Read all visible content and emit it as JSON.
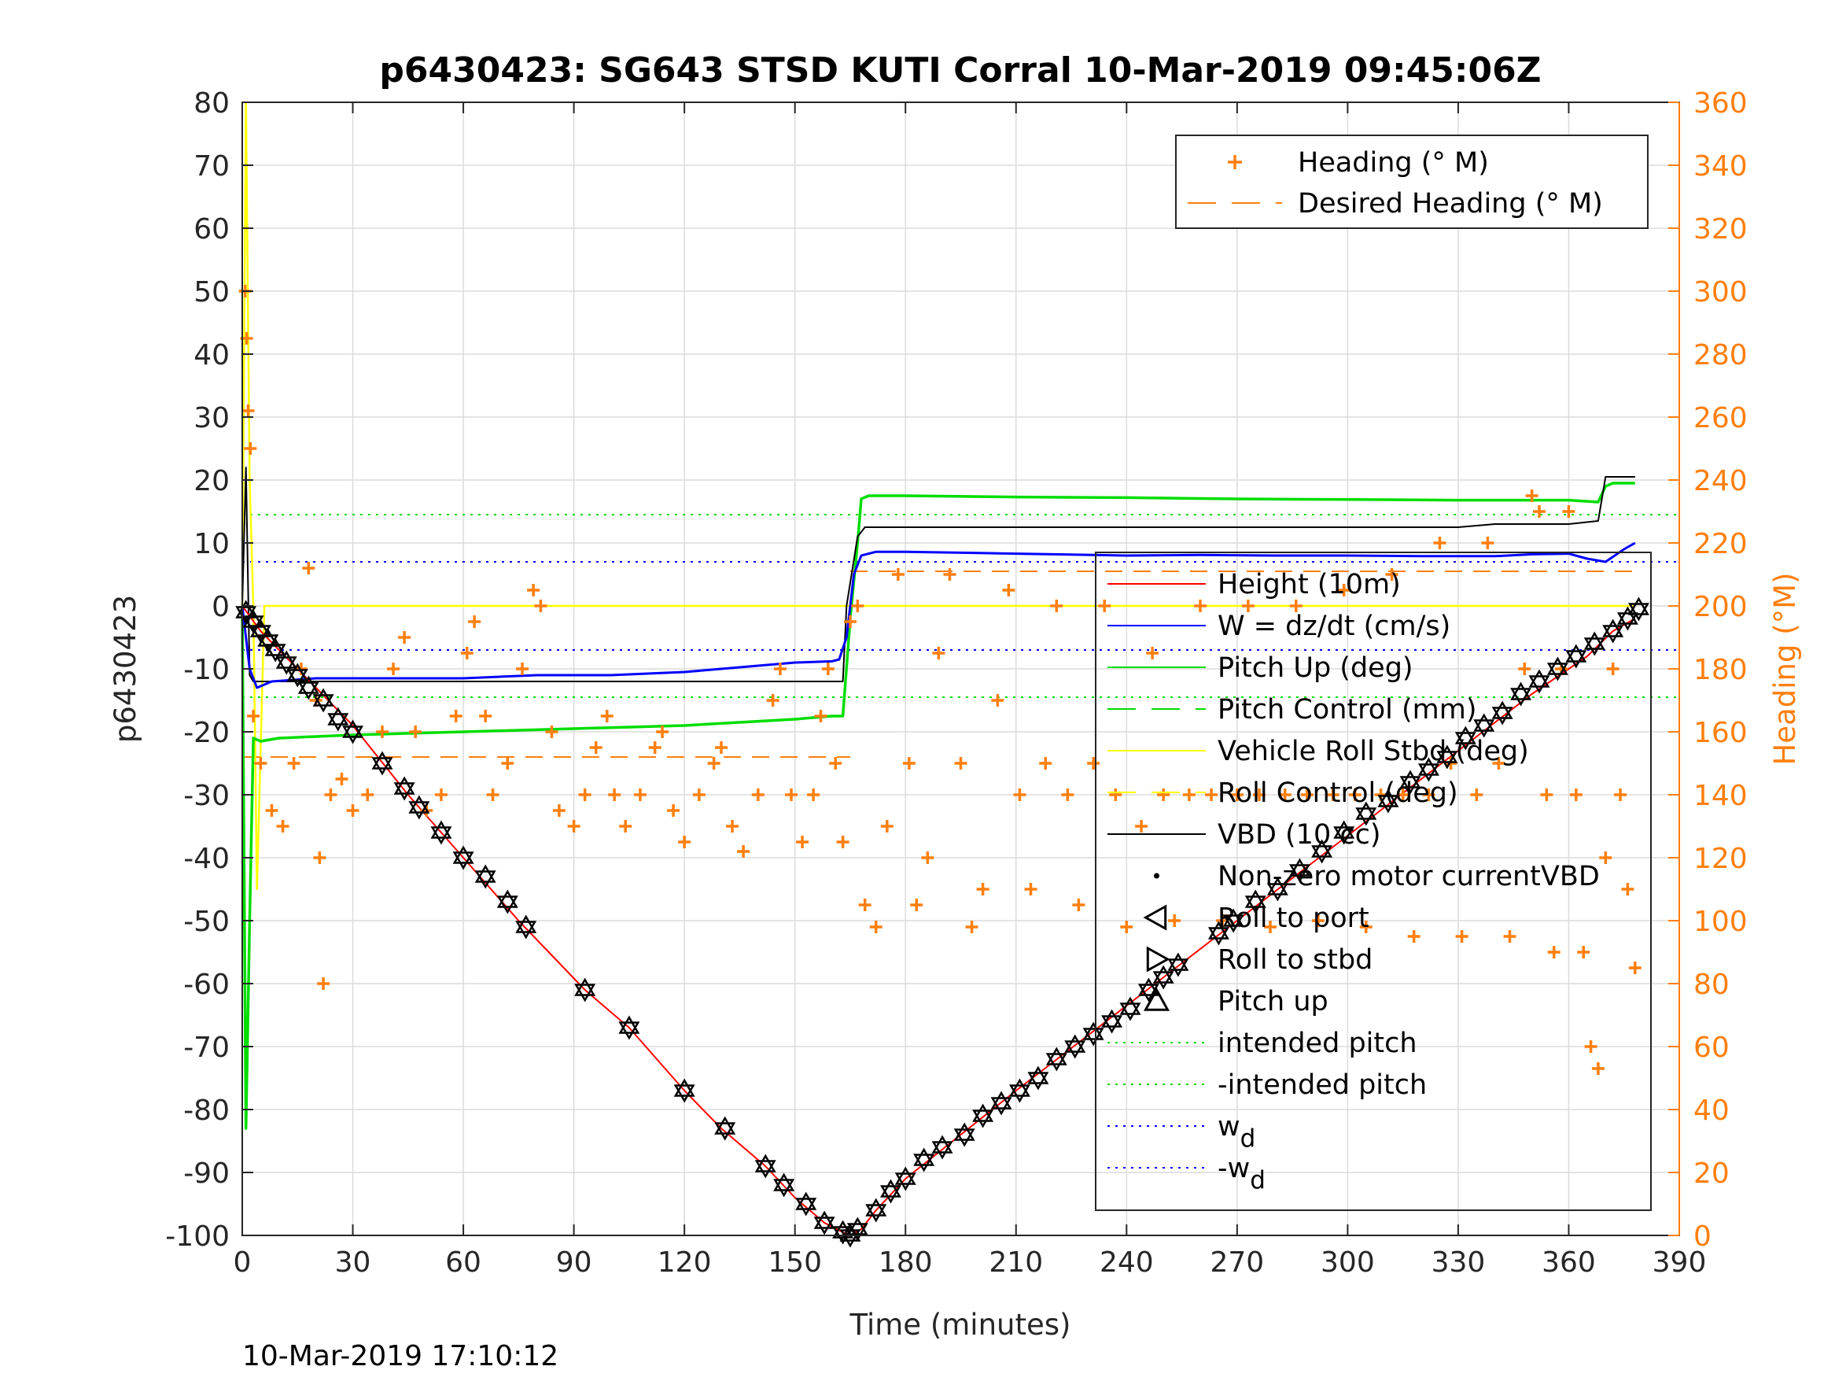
{
  "chart_data": {
    "type": "line",
    "title": "p6430423: SG643 STSD KUTI Corral 10-Mar-2019 09:45:06Z",
    "xlabel": "Time (minutes)",
    "ylabel": "p6430423",
    "y2label": "Heading (°M)",
    "timestamp": "10-Mar-2019 17:10:12",
    "xlim": [
      0,
      390
    ],
    "ylim": [
      -100,
      80
    ],
    "y2lim": [
      0,
      360
    ],
    "xticks": [
      0,
      30,
      60,
      90,
      120,
      150,
      180,
      210,
      240,
      270,
      300,
      330,
      360,
      390
    ],
    "yticks": [
      -100,
      -90,
      -80,
      -70,
      -60,
      -50,
      -40,
      -30,
      -20,
      -10,
      0,
      10,
      20,
      30,
      40,
      50,
      60,
      70,
      80
    ],
    "y2ticks": [
      0,
      20,
      40,
      60,
      80,
      100,
      120,
      140,
      160,
      180,
      200,
      220,
      240,
      260,
      280,
      300,
      320,
      340,
      360
    ],
    "grid": true,
    "colors": {
      "height": "#ff0000",
      "w": "#0000ff",
      "pitch": "#00dd00",
      "roll": "#ffff00",
      "vbd": "#000000",
      "heading": "#ff7f0e"
    },
    "legend_heading": {
      "placement": "top-right",
      "entries": [
        {
          "label": "Heading (° M)",
          "marker": "plus",
          "color": "#ff7f0e"
        },
        {
          "label": "Desired Heading (° M)",
          "marker": "dash",
          "color": "#ff7f0e"
        }
      ]
    },
    "legend_main": {
      "placement": "right",
      "entries": [
        {
          "label": "Height (10m)",
          "style": "solid",
          "color": "#ff0000"
        },
        {
          "label": "W = dz/dt (cm/s)",
          "style": "solid",
          "color": "#0000ff"
        },
        {
          "label": "Pitch Up (deg)",
          "style": "solid",
          "color": "#00dd00"
        },
        {
          "label": "Pitch Control (mm)",
          "style": "dashed",
          "color": "#00dd00"
        },
        {
          "label": "Vehicle Roll Stbd (deg)",
          "style": "solid",
          "color": "#ffff00"
        },
        {
          "label": "Roll Control (deg)",
          "style": "dashed",
          "color": "#ffff00"
        },
        {
          "label": "VBD (10 cc)",
          "style": "solid",
          "color": "#000000"
        },
        {
          "label": "Non-zero motor currentVBD",
          "style": "dot",
          "color": "#000000"
        },
        {
          "label": "Roll to port",
          "style": "tri-left",
          "color": "#000000"
        },
        {
          "label": "Roll to stbd",
          "style": "tri-right",
          "color": "#000000"
        },
        {
          "label": "Pitch up",
          "style": "tri-up",
          "color": "#000000"
        },
        {
          "label": "intended pitch",
          "style": "dotted",
          "color": "#00dd00"
        },
        {
          "label": "-intended pitch",
          "style": "dotted",
          "color": "#00dd00"
        },
        {
          "label": "w",
          "subscript": "d",
          "style": "dotted",
          "color": "#0000ff"
        },
        {
          "label": "-w",
          "subscript": "d",
          "style": "dotted",
          "color": "#0000ff"
        }
      ]
    },
    "reference_lines": {
      "intended_pitch": 14.5,
      "neg_intended_pitch": -14.5,
      "w_d": 7,
      "neg_w_d": -7,
      "desired_heading": [
        {
          "x0": 0,
          "x1": 165,
          "value": 152
        },
        {
          "x0": 165,
          "x1": 380,
          "value": 211
        }
      ]
    },
    "series": [
      {
        "name": "Height (10m)",
        "x": [
          0,
          5,
          10,
          15,
          20,
          30,
          45,
          60,
          75,
          93,
          105,
          120,
          130,
          142,
          150,
          158,
          163,
          165,
          168,
          172,
          180,
          195,
          210,
          230,
          250,
          270,
          290,
          310,
          330,
          350,
          365,
          372,
          378
        ],
        "y": [
          0,
          -4,
          -7,
          -10,
          -13,
          -19,
          -30,
          -40,
          -50,
          -61,
          -67,
          -77,
          -83,
          -89,
          -94,
          -98,
          -99.5,
          -100,
          -99,
          -96,
          -91,
          -84,
          -77,
          -68,
          -59,
          -50,
          -41,
          -32,
          -23,
          -14,
          -8,
          -4,
          -2
        ]
      },
      {
        "name": "W = dz/dt (cm/s)",
        "x": [
          0,
          2,
          4,
          8,
          20,
          40,
          60,
          80,
          100,
          120,
          130,
          140,
          150,
          160,
          162,
          164,
          166,
          168,
          172,
          180,
          200,
          220,
          240,
          260,
          280,
          300,
          320,
          340,
          350,
          360,
          365,
          370,
          375,
          378
        ],
        "y": [
          0,
          -10,
          -13,
          -12,
          -11.5,
          -11.5,
          -11.5,
          -11,
          -11,
          -10.5,
          -10,
          -9.5,
          -9,
          -8.8,
          -8.5,
          -5,
          5,
          8,
          8.6,
          8.6,
          8.4,
          8.2,
          8.0,
          8.1,
          8.0,
          8.0,
          7.9,
          7.9,
          8.2,
          8.3,
          7.5,
          7,
          9,
          10
        ]
      },
      {
        "name": "Pitch Up (deg)",
        "x": [
          0,
          1,
          2,
          3,
          5,
          10,
          30,
          60,
          90,
          120,
          150,
          160,
          163,
          165,
          167,
          168,
          170,
          180,
          210,
          240,
          270,
          300,
          330,
          360,
          368,
          370,
          372,
          378
        ],
        "y": [
          0,
          -83,
          -50,
          -21,
          -21.5,
          -21,
          -20.5,
          -20,
          -19.5,
          -19,
          -18,
          -17.5,
          -17.5,
          -2,
          10,
          17,
          17.5,
          17.5,
          17.3,
          17.2,
          17.0,
          16.9,
          16.8,
          16.8,
          16.5,
          19,
          19.5,
          19.5
        ]
      },
      {
        "name": "Vehicle Roll Stbd (deg)",
        "x": [
          0,
          1,
          2,
          3,
          4,
          6,
          10,
          30,
          60,
          90,
          120,
          150,
          160,
          165,
          170,
          200,
          240,
          280,
          320,
          360,
          378
        ],
        "y": [
          0,
          80,
          20,
          0,
          -45,
          0,
          0,
          0,
          0,
          0,
          0,
          0,
          0,
          0,
          0,
          0,
          0,
          0,
          0,
          0,
          0
        ]
      },
      {
        "name": "VBD (10 cc)",
        "x": [
          0,
          1,
          2,
          3,
          4,
          160,
          163,
          164,
          167,
          169,
          180,
          200,
          220,
          240,
          260,
          300,
          330,
          340,
          350,
          360,
          368,
          370,
          378
        ],
        "y": [
          0,
          22,
          -11,
          -12,
          -12,
          -12,
          -12,
          0,
          11,
          12.5,
          12.5,
          12.5,
          12.5,
          12.5,
          12.5,
          12.5,
          12.5,
          13,
          13,
          13,
          13.5,
          20.5,
          20.5
        ]
      }
    ],
    "heading_points": [
      {
        "x": 0.8,
        "y": 300
      },
      {
        "x": 1.2,
        "y": 285
      },
      {
        "x": 1.6,
        "y": 262
      },
      {
        "x": 2.2,
        "y": 250
      },
      {
        "x": 3,
        "y": 165
      },
      {
        "x": 5,
        "y": 150
      },
      {
        "x": 8,
        "y": 135
      },
      {
        "x": 11,
        "y": 130
      },
      {
        "x": 14,
        "y": 150
      },
      {
        "x": 16,
        "y": 180
      },
      {
        "x": 18,
        "y": 212
      },
      {
        "x": 20,
        "y": 170
      },
      {
        "x": 21,
        "y": 120
      },
      {
        "x": 22,
        "y": 80
      },
      {
        "x": 24,
        "y": 140
      },
      {
        "x": 27,
        "y": 145
      },
      {
        "x": 30,
        "y": 135
      },
      {
        "x": 34,
        "y": 140
      },
      {
        "x": 38,
        "y": 160
      },
      {
        "x": 41,
        "y": 180
      },
      {
        "x": 44,
        "y": 190
      },
      {
        "x": 47,
        "y": 160
      },
      {
        "x": 50,
        "y": 135
      },
      {
        "x": 54,
        "y": 140
      },
      {
        "x": 58,
        "y": 165
      },
      {
        "x": 61,
        "y": 185
      },
      {
        "x": 63,
        "y": 195
      },
      {
        "x": 66,
        "y": 165
      },
      {
        "x": 68,
        "y": 140
      },
      {
        "x": 72,
        "y": 150
      },
      {
        "x": 76,
        "y": 180
      },
      {
        "x": 79,
        "y": 205
      },
      {
        "x": 81,
        "y": 200
      },
      {
        "x": 84,
        "y": 160
      },
      {
        "x": 86,
        "y": 135
      },
      {
        "x": 90,
        "y": 130
      },
      {
        "x": 93,
        "y": 140
      },
      {
        "x": 96,
        "y": 155
      },
      {
        "x": 99,
        "y": 165
      },
      {
        "x": 101,
        "y": 140
      },
      {
        "x": 104,
        "y": 130
      },
      {
        "x": 108,
        "y": 140
      },
      {
        "x": 112,
        "y": 155
      },
      {
        "x": 114,
        "y": 160
      },
      {
        "x": 117,
        "y": 135
      },
      {
        "x": 120,
        "y": 125
      },
      {
        "x": 124,
        "y": 140
      },
      {
        "x": 128,
        "y": 150
      },
      {
        "x": 130,
        "y": 155
      },
      {
        "x": 133,
        "y": 130
      },
      {
        "x": 136,
        "y": 122
      },
      {
        "x": 140,
        "y": 140
      },
      {
        "x": 144,
        "y": 170
      },
      {
        "x": 146,
        "y": 180
      },
      {
        "x": 149,
        "y": 140
      },
      {
        "x": 152,
        "y": 125
      },
      {
        "x": 155,
        "y": 140
      },
      {
        "x": 157,
        "y": 165
      },
      {
        "x": 159,
        "y": 180
      },
      {
        "x": 161,
        "y": 150
      },
      {
        "x": 163,
        "y": 125
      },
      {
        "x": 165,
        "y": 195
      },
      {
        "x": 167,
        "y": 200
      },
      {
        "x": 169,
        "y": 105
      },
      {
        "x": 172,
        "y": 98
      },
      {
        "x": 175,
        "y": 130
      },
      {
        "x": 178,
        "y": 210
      },
      {
        "x": 181,
        "y": 150
      },
      {
        "x": 183,
        "y": 105
      },
      {
        "x": 186,
        "y": 120
      },
      {
        "x": 189,
        "y": 185
      },
      {
        "x": 192,
        "y": 210
      },
      {
        "x": 195,
        "y": 150
      },
      {
        "x": 198,
        "y": 98
      },
      {
        "x": 201,
        "y": 110
      },
      {
        "x": 205,
        "y": 170
      },
      {
        "x": 208,
        "y": 205
      },
      {
        "x": 211,
        "y": 140
      },
      {
        "x": 214,
        "y": 110
      },
      {
        "x": 218,
        "y": 150
      },
      {
        "x": 221,
        "y": 200
      },
      {
        "x": 224,
        "y": 140
      },
      {
        "x": 227,
        "y": 105
      },
      {
        "x": 231,
        "y": 150
      },
      {
        "x": 234,
        "y": 200
      },
      {
        "x": 237,
        "y": 140
      },
      {
        "x": 240,
        "y": 98
      },
      {
        "x": 244,
        "y": 130
      },
      {
        "x": 247,
        "y": 185
      },
      {
        "x": 250,
        "y": 140
      },
      {
        "x": 253,
        "y": 100
      },
      {
        "x": 257,
        "y": 140
      },
      {
        "x": 260,
        "y": 200
      },
      {
        "x": 263,
        "y": 140
      },
      {
        "x": 266,
        "y": 100
      },
      {
        "x": 270,
        "y": 140
      },
      {
        "x": 273,
        "y": 200
      },
      {
        "x": 276,
        "y": 140
      },
      {
        "x": 279,
        "y": 98
      },
      {
        "x": 283,
        "y": 140
      },
      {
        "x": 286,
        "y": 200
      },
      {
        "x": 289,
        "y": 140
      },
      {
        "x": 292,
        "y": 100
      },
      {
        "x": 296,
        "y": 140
      },
      {
        "x": 299,
        "y": 205
      },
      {
        "x": 302,
        "y": 140
      },
      {
        "x": 305,
        "y": 98
      },
      {
        "x": 309,
        "y": 140
      },
      {
        "x": 312,
        "y": 210
      },
      {
        "x": 315,
        "y": 140
      },
      {
        "x": 318,
        "y": 95
      },
      {
        "x": 322,
        "y": 140
      },
      {
        "x": 325,
        "y": 220
      },
      {
        "x": 328,
        "y": 150
      },
      {
        "x": 331,
        "y": 95
      },
      {
        "x": 335,
        "y": 140
      },
      {
        "x": 338,
        "y": 220
      },
      {
        "x": 341,
        "y": 150
      },
      {
        "x": 344,
        "y": 95
      },
      {
        "x": 348,
        "y": 180
      },
      {
        "x": 350,
        "y": 235
      },
      {
        "x": 352,
        "y": 230
      },
      {
        "x": 354,
        "y": 140
      },
      {
        "x": 356,
        "y": 90
      },
      {
        "x": 358,
        "y": 180
      },
      {
        "x": 360,
        "y": 230
      },
      {
        "x": 362,
        "y": 140
      },
      {
        "x": 364,
        "y": 90
      },
      {
        "x": 366,
        "y": 60
      },
      {
        "x": 368,
        "y": 53
      },
      {
        "x": 370,
        "y": 120
      },
      {
        "x": 372,
        "y": 180
      },
      {
        "x": 374,
        "y": 140
      },
      {
        "x": 376,
        "y": 110
      },
      {
        "x": 378,
        "y": 85
      }
    ],
    "marker_points": [
      {
        "x": 1,
        "y": -1
      },
      {
        "x": 3,
        "y": -2.5
      },
      {
        "x": 5,
        "y": -4
      },
      {
        "x": 7,
        "y": -5.5
      },
      {
        "x": 9,
        "y": -7
      },
      {
        "x": 12,
        "y": -9
      },
      {
        "x": 15,
        "y": -11
      },
      {
        "x": 18,
        "y": -13
      },
      {
        "x": 22,
        "y": -15
      },
      {
        "x": 26,
        "y": -18
      },
      {
        "x": 30,
        "y": -20
      },
      {
        "x": 38,
        "y": -25
      },
      {
        "x": 44,
        "y": -29
      },
      {
        "x": 48,
        "y": -32
      },
      {
        "x": 54,
        "y": -36
      },
      {
        "x": 60,
        "y": -40
      },
      {
        "x": 66,
        "y": -43
      },
      {
        "x": 72,
        "y": -47
      },
      {
        "x": 77,
        "y": -51
      },
      {
        "x": 93,
        "y": -61
      },
      {
        "x": 105,
        "y": -67
      },
      {
        "x": 120,
        "y": -77
      },
      {
        "x": 131,
        "y": -83
      },
      {
        "x": 142,
        "y": -89
      },
      {
        "x": 147,
        "y": -92
      },
      {
        "x": 153,
        "y": -95
      },
      {
        "x": 158,
        "y": -98
      },
      {
        "x": 163,
        "y": -99.5
      },
      {
        "x": 165,
        "y": -100
      },
      {
        "x": 167,
        "y": -99
      },
      {
        "x": 172,
        "y": -96
      },
      {
        "x": 176,
        "y": -93
      },
      {
        "x": 180,
        "y": -91
      },
      {
        "x": 185,
        "y": -88
      },
      {
        "x": 190,
        "y": -86
      },
      {
        "x": 196,
        "y": -84
      },
      {
        "x": 201,
        "y": -81
      },
      {
        "x": 206,
        "y": -79
      },
      {
        "x": 211,
        "y": -77
      },
      {
        "x": 216,
        "y": -75
      },
      {
        "x": 221,
        "y": -72
      },
      {
        "x": 226,
        "y": -70
      },
      {
        "x": 231,
        "y": -68
      },
      {
        "x": 236,
        "y": -66
      },
      {
        "x": 241,
        "y": -64
      },
      {
        "x": 246,
        "y": -61
      },
      {
        "x": 250,
        "y": -59
      },
      {
        "x": 254,
        "y": -57
      },
      {
        "x": 265,
        "y": -52
      },
      {
        "x": 269,
        "y": -50
      },
      {
        "x": 275,
        "y": -47
      },
      {
        "x": 281,
        "y": -45
      },
      {
        "x": 287,
        "y": -42
      },
      {
        "x": 293,
        "y": -39
      },
      {
        "x": 299,
        "y": -36
      },
      {
        "x": 305,
        "y": -33
      },
      {
        "x": 311,
        "y": -31
      },
      {
        "x": 317,
        "y": -28
      },
      {
        "x": 322,
        "y": -26
      },
      {
        "x": 327,
        "y": -24
      },
      {
        "x": 332,
        "y": -21
      },
      {
        "x": 337,
        "y": -19
      },
      {
        "x": 342,
        "y": -17
      },
      {
        "x": 347,
        "y": -14
      },
      {
        "x": 352,
        "y": -12
      },
      {
        "x": 357,
        "y": -10
      },
      {
        "x": 362,
        "y": -8
      },
      {
        "x": 367,
        "y": -6
      },
      {
        "x": 372,
        "y": -4
      },
      {
        "x": 376,
        "y": -2
      },
      {
        "x": 379,
        "y": -0.5
      }
    ]
  }
}
